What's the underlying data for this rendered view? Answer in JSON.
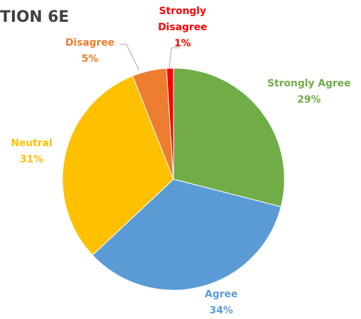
{
  "chart_data": {
    "type": "pie",
    "title": "TION 6E",
    "categories": [
      "Strongly Agree",
      "Agree",
      "Neutral",
      "Disagree",
      "Strongly Disagree"
    ],
    "values": [
      29,
      34,
      31,
      5,
      1
    ],
    "value_labels": [
      "29%",
      "34%",
      "31%",
      "5%",
      "1%"
    ],
    "colors": [
      "#70ad47",
      "#5b9bd5",
      "#ffc000",
      "#ed7d31",
      "#ff0000"
    ]
  }
}
